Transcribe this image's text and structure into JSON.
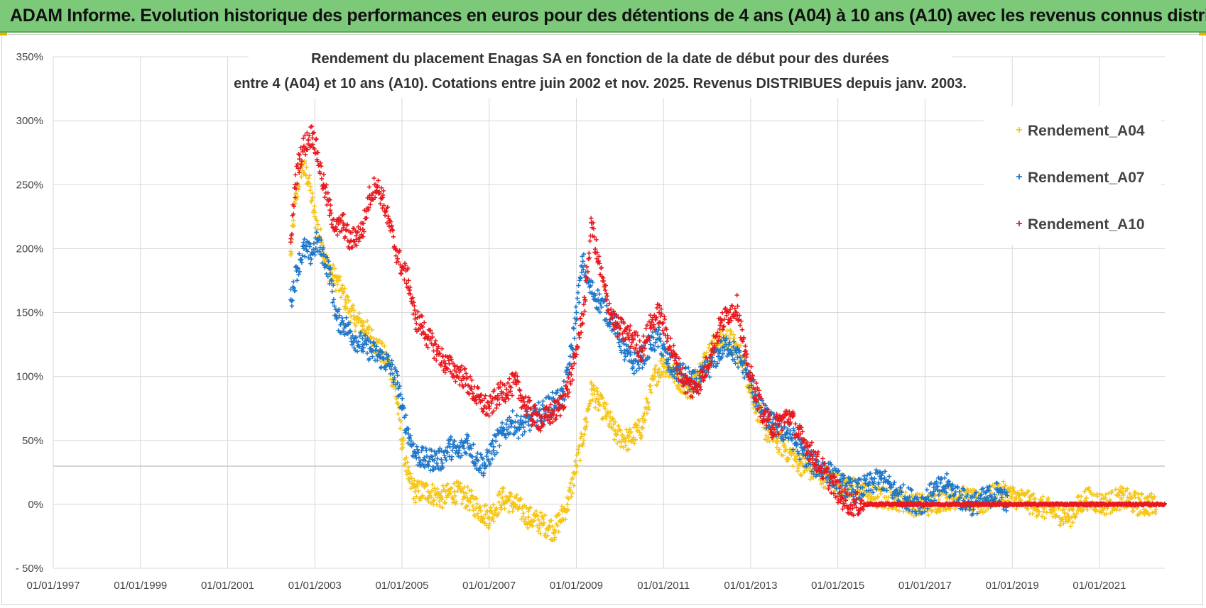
{
  "header": {
    "banner_text": "ADAM Informe. Evolution historique des performances en euros pour des détentions de 4 ans (A04) à 10 ans (A10) avec les revenus connus distribués"
  },
  "chart_data": {
    "type": "scatter",
    "title_line1": "Rendement du placement Enagas SA en fonction de la date de début pour des durées",
    "title_line2": "entre 4 (A04) et 10 ans (A10).  Cotations entre juin 2002 et nov. 2025.  Revenus DISTRIBUES depuis janv. 2003.",
    "x_ticks": [
      "01/01/1997",
      "01/01/1999",
      "01/01/2001",
      "01/01/2003",
      "01/01/2005",
      "01/01/2007",
      "01/01/2009",
      "01/01/2011",
      "01/01/2013",
      "01/01/2015",
      "01/01/2017",
      "01/01/2019",
      "01/01/2021"
    ],
    "xlim": [
      1997.0,
      2022.5
    ],
    "y_ticks": [
      "350%",
      "300%",
      "250%",
      "200%",
      "150%",
      "100%",
      "50%",
      "0%",
      "- 50%"
    ],
    "ylim": [
      -50,
      350
    ],
    "marker": "+",
    "legend_position": "top-right",
    "series": [
      {
        "name": "Rendement_A04",
        "color": "#f5c518",
        "x": [
          2002.45,
          2002.55,
          2002.7,
          2002.85,
          2003.0,
          2003.15,
          2003.3,
          2003.5,
          2003.7,
          2003.9,
          2004.1,
          2004.3,
          2004.5,
          2004.7,
          2004.85,
          2005.0,
          2005.15,
          2005.3,
          2005.6,
          2005.9,
          2006.2,
          2006.5,
          2006.8,
          2007.0,
          2007.3,
          2007.6,
          2007.9,
          2008.2,
          2008.5,
          2008.8,
          2009.0,
          2009.2,
          2009.35,
          2009.5,
          2009.7,
          2009.9,
          2010.2,
          2010.5,
          2010.8,
          2011.0,
          2011.3,
          2011.6,
          2011.9,
          2012.2,
          2012.5,
          2012.8,
          2013.0,
          2013.3,
          2013.6,
          2013.9,
          2014.2,
          2014.5,
          2014.8,
          2015.1,
          2015.5,
          2015.9,
          2016.3,
          2016.7,
          2017.1,
          2017.5,
          2017.9,
          2018.3,
          2018.7,
          2019.1,
          2019.5,
          2019.9,
          2020.3,
          2020.7,
          2021.1,
          2021.5,
          2021.9,
          2022.3
        ],
        "y": [
          195,
          235,
          265,
          255,
          225,
          205,
          185,
          175,
          160,
          145,
          140,
          130,
          120,
          110,
          90,
          50,
          20,
          10,
          10,
          5,
          10,
          5,
          -5,
          -10,
          5,
          0,
          -10,
          -15,
          -20,
          0,
          30,
          60,
          90,
          80,
          70,
          55,
          50,
          60,
          100,
          110,
          100,
          90,
          110,
          125,
          130,
          115,
          90,
          60,
          50,
          40,
          30,
          25,
          20,
          15,
          10,
          5,
          5,
          0,
          0,
          5,
          5,
          0,
          10,
          5,
          0,
          -5,
          -10,
          5,
          0,
          5,
          0,
          0
        ]
      },
      {
        "name": "Rendement_A07",
        "color": "#1f77c9",
        "x": [
          2002.45,
          2002.6,
          2002.75,
          2002.9,
          2003.05,
          2003.2,
          2003.35,
          2003.5,
          2003.7,
          2003.9,
          2004.1,
          2004.3,
          2004.5,
          2004.7,
          2004.9,
          2005.0,
          2005.15,
          2005.3,
          2005.5,
          2005.7,
          2005.9,
          2006.1,
          2006.3,
          2006.5,
          2006.7,
          2006.9,
          2007.1,
          2007.3,
          2007.5,
          2007.7,
          2007.9,
          2008.1,
          2008.3,
          2008.5,
          2008.7,
          2008.85,
          2009.0,
          2009.15,
          2009.3,
          2009.5,
          2009.7,
          2009.9,
          2010.1,
          2010.3,
          2010.5,
          2010.7,
          2010.9,
          2011.1,
          2011.3,
          2011.5,
          2011.7,
          2011.9,
          2012.1,
          2012.3,
          2012.5,
          2012.7,
          2012.9,
          2013.1,
          2013.3,
          2013.6,
          2013.9,
          2014.2,
          2014.5,
          2014.8,
          2015.1,
          2015.4,
          2015.7,
          2016.0,
          2016.3,
          2016.6,
          2016.9,
          2017.2,
          2017.5,
          2017.8,
          2018.1,
          2018.4,
          2018.7,
          2018.9
        ],
        "y": [
          160,
          185,
          200,
          195,
          205,
          195,
          180,
          145,
          140,
          130,
          125,
          120,
          115,
          110,
          95,
          75,
          55,
          40,
          35,
          35,
          35,
          45,
          40,
          50,
          35,
          30,
          45,
          55,
          65,
          60,
          65,
          70,
          75,
          80,
          85,
          110,
          150,
          190,
          170,
          160,
          150,
          140,
          120,
          110,
          115,
          125,
          130,
          110,
          105,
          100,
          95,
          100,
          110,
          120,
          125,
          115,
          105,
          85,
          70,
          60,
          55,
          40,
          30,
          25,
          15,
          10,
          15,
          20,
          10,
          5,
          0,
          10,
          15,
          5,
          0,
          5,
          10,
          0
        ]
      },
      {
        "name": "Rendement_A10",
        "color": "#e8191f",
        "x": [
          2002.45,
          2002.55,
          2002.65,
          2002.75,
          2002.85,
          2002.95,
          2003.05,
          2003.2,
          2003.35,
          2003.5,
          2003.65,
          2003.8,
          2003.95,
          2004.1,
          2004.25,
          2004.4,
          2004.55,
          2004.7,
          2004.85,
          2005.0,
          2005.15,
          2005.3,
          2005.45,
          2005.6,
          2005.8,
          2006.0,
          2006.2,
          2006.4,
          2006.6,
          2006.8,
          2007.0,
          2007.2,
          2007.4,
          2007.6,
          2007.8,
          2008.0,
          2008.2,
          2008.4,
          2008.6,
          2008.8,
          2008.95,
          2009.1,
          2009.2,
          2009.35,
          2009.5,
          2009.7,
          2009.9,
          2010.1,
          2010.3,
          2010.5,
          2010.7,
          2010.9,
          2011.1,
          2011.3,
          2011.5,
          2011.7,
          2011.9,
          2012.1,
          2012.3,
          2012.5,
          2012.7,
          2012.9,
          2013.1,
          2013.3,
          2013.5,
          2013.7,
          2013.9,
          2014.1,
          2014.3,
          2014.5,
          2014.7,
          2014.9,
          2015.1,
          2015.3,
          2015.6
        ],
        "y": [
          205,
          250,
          270,
          280,
          285,
          290,
          275,
          250,
          230,
          215,
          220,
          205,
          210,
          215,
          240,
          250,
          240,
          220,
          200,
          185,
          175,
          145,
          140,
          130,
          120,
          110,
          105,
          100,
          90,
          80,
          75,
          85,
          90,
          95,
          80,
          70,
          65,
          70,
          75,
          90,
          110,
          140,
          160,
          220,
          190,
          160,
          140,
          135,
          130,
          120,
          140,
          150,
          130,
          110,
          95,
          90,
          100,
          120,
          140,
          150,
          155,
          110,
          90,
          70,
          60,
          65,
          70,
          55,
          45,
          35,
          25,
          15,
          5,
          0,
          0
        ]
      }
    ],
    "flat_red_from": 2015.6,
    "flat_red_to": 2022.5,
    "flat_red_value": 0
  }
}
